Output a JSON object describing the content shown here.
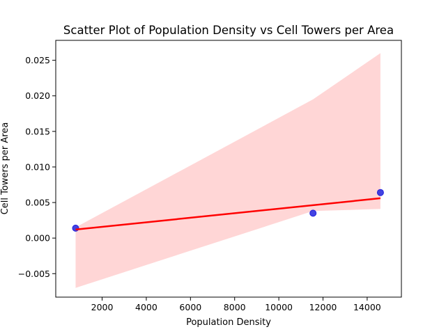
{
  "chart_data": {
    "type": "scatter",
    "title": "Scatter Plot of Population Density vs Cell Towers per Area",
    "xlabel": "Population Density",
    "ylabel": "Cell Towers per Area",
    "xlim": [
      -100,
      15550
    ],
    "ylim": [
      -0.0083,
      0.0278
    ],
    "xticks": [
      2000,
      4000,
      6000,
      8000,
      10000,
      12000,
      14000
    ],
    "xtick_labels": [
      "2000",
      "4000",
      "6000",
      "8000",
      "10000",
      "12000",
      "14000"
    ],
    "yticks": [
      -0.005,
      0.0,
      0.005,
      0.01,
      0.015,
      0.02,
      0.025
    ],
    "ytick_labels": [
      "−0.005",
      "0.000",
      "0.005",
      "0.010",
      "0.015",
      "0.020",
      "0.025"
    ],
    "points": [
      {
        "x": 800,
        "y": 0.0014
      },
      {
        "x": 11550,
        "y": 0.0035
      },
      {
        "x": 14600,
        "y": 0.0064
      }
    ],
    "regression_line": {
      "x": [
        800,
        14600
      ],
      "y": [
        0.0012,
        0.0056
      ]
    },
    "confidence_band": {
      "x": [
        800,
        11550,
        14600
      ],
      "upper": [
        0.0015,
        0.0195,
        0.026
      ],
      "lower": [
        -0.007,
        0.0038,
        0.0041
      ]
    },
    "grid": false,
    "colors": {
      "points": "#2222dd",
      "line": "#ff0000",
      "band": "#ffc8c8"
    }
  }
}
